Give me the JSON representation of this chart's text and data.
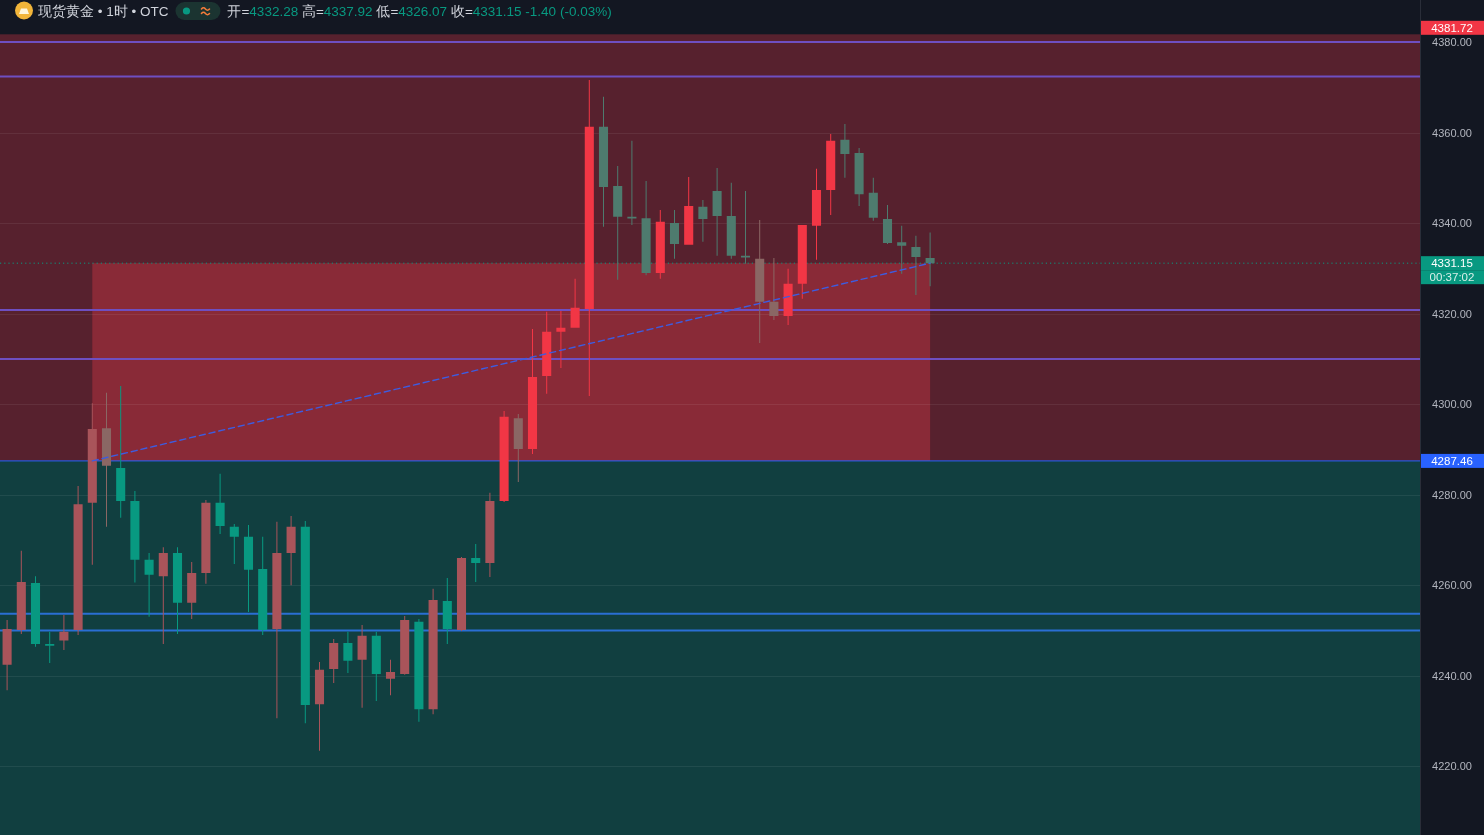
{
  "chart_data": {
    "type": "candlestick",
    "title": "现货黄金 • 1时 • OTC",
    "subtitle": "开=4332.28 高=4337.92 低=4326.07 收=4331.15 -1.40 (-0.03%)",
    "categories": [
      null,
      null,
      null,
      null,
      null,
      null,
      null,
      null,
      null,
      null,
      null,
      null,
      null,
      null,
      null,
      null,
      null,
      null,
      null,
      null,
      null,
      null,
      null,
      null,
      null,
      null,
      null,
      null,
      null,
      null,
      null,
      null,
      null,
      null,
      null,
      null,
      null,
      null,
      null,
      null,
      null,
      null,
      null,
      null,
      null,
      null,
      null,
      null,
      null,
      null,
      null,
      null,
      null,
      null,
      null,
      null,
      null,
      null,
      null,
      null,
      null,
      null,
      null,
      null,
      null,
      null,
      null,
      null,
      null,
      null,
      null,
      null,
      null,
      null,
      null,
      null,
      null,
      null,
      null,
      null,
      null,
      null,
      null,
      null,
      null,
      null,
      null,
      null,
      null,
      null,
      null,
      null,
      null,
      null,
      null,
      null,
      null,
      null,
      null,
      null
    ],
    "ohlc": [
      [
        4242.4,
        4252.3,
        4236.8,
        4250.3
      ],
      [
        4250.1,
        4267.6,
        4249.2,
        4260.7
      ],
      [
        4260.5,
        4262.0,
        4246.4,
        4247.0
      ],
      [
        4247.0,
        4249.7,
        4242.8,
        4246.6
      ],
      [
        4247.8,
        4253.4,
        4245.7,
        4249.7
      ],
      [
        4250.1,
        4281.9,
        4249.0,
        4277.9
      ],
      [
        4278.2,
        4300.2,
        4264.5,
        4294.5
      ],
      [
        4294.7,
        4302.5,
        4272.9,
        4286.4
      ],
      [
        4285.9,
        4304.0,
        4274.9,
        4278.6
      ],
      [
        4278.6,
        4280.8,
        4260.6,
        4265.6
      ],
      [
        4265.6,
        4267.1,
        4253.0,
        4262.3
      ],
      [
        4262.0,
        4268.4,
        4247.0,
        4267.1
      ],
      [
        4267.1,
        4268.4,
        4249.2,
        4256.1
      ],
      [
        4256.1,
        4265.1,
        4252.5,
        4262.7
      ],
      [
        4262.7,
        4278.8,
        4260.3,
        4278.2
      ],
      [
        4278.2,
        4284.6,
        4271.3,
        4273.1
      ],
      [
        4272.9,
        4273.5,
        4264.7,
        4270.7
      ],
      [
        4270.7,
        4273.3,
        4254.1,
        4263.4
      ],
      [
        4263.6,
        4270.7,
        4249.0,
        4250.1
      ],
      [
        4250.3,
        4274.0,
        4230.6,
        4267.1
      ],
      [
        4267.1,
        4275.3,
        4260.0,
        4272.9
      ],
      [
        4272.9,
        4274.2,
        4229.5,
        4233.5
      ],
      [
        4233.7,
        4243.0,
        4223.4,
        4241.3
      ],
      [
        4241.5,
        4248.1,
        4238.4,
        4247.2
      ],
      [
        4247.2,
        4249.7,
        4240.6,
        4243.3
      ],
      [
        4243.5,
        4251.2,
        4232.9,
        4248.8
      ],
      [
        4248.8,
        4249.7,
        4234.4,
        4240.4
      ],
      [
        4239.3,
        4243.5,
        4235.7,
        4240.8
      ],
      [
        4240.4,
        4253.2,
        4240.2,
        4252.3
      ],
      [
        4251.9,
        4252.5,
        4229.8,
        4232.6
      ],
      [
        4232.6,
        4259.2,
        4231.5,
        4256.7
      ],
      [
        4256.5,
        4261.6,
        4247.0,
        4250.3
      ],
      [
        4250.1,
        4266.2,
        4249.9,
        4266.0
      ],
      [
        4266.0,
        4269.1,
        4260.7,
        4264.9
      ],
      [
        4264.9,
        4280.4,
        4261.8,
        4278.6
      ],
      [
        4278.6,
        4298.5,
        4278.4,
        4297.2
      ],
      [
        4296.9,
        4297.8,
        4282.8,
        4290.1
      ],
      [
        4290.1,
        4316.6,
        4289.0,
        4306.0
      ],
      [
        4306.2,
        4320.4,
        4302.3,
        4316.0
      ],
      [
        4316.0,
        4320.6,
        4308.0,
        4316.9
      ],
      [
        4316.9,
        4327.7,
        4316.9,
        4321.3
      ],
      [
        4321.0,
        4371.6,
        4301.8,
        4361.3
      ],
      [
        4361.3,
        4367.9,
        4339.2,
        4348.0
      ],
      [
        4348.2,
        4352.6,
        4327.5,
        4341.4
      ],
      [
        4341.4,
        4358.2,
        4339.6,
        4341.0
      ],
      [
        4341.1,
        4349.3,
        4328.5,
        4329.0
      ],
      [
        4329.0,
        4342.9,
        4327.7,
        4340.3
      ],
      [
        4340.0,
        4342.9,
        4332.1,
        4335.4
      ],
      [
        4335.2,
        4350.2,
        4335.2,
        4343.8
      ],
      [
        4343.6,
        4345.1,
        4335.9,
        4340.9
      ],
      [
        4347.1,
        4352.2,
        4332.8,
        4341.6
      ],
      [
        4341.6,
        4348.9,
        4332.1,
        4332.8
      ],
      [
        4332.8,
        4347.1,
        4331.0,
        4332.4
      ],
      [
        4332.1,
        4340.7,
        4313.5,
        4322.6
      ],
      [
        4322.6,
        4332.3,
        4318.6,
        4319.5
      ],
      [
        4319.5,
        4329.9,
        4317.5,
        4326.6
      ],
      [
        4326.6,
        4339.6,
        4323.3,
        4339.6
      ],
      [
        4339.4,
        4352.0,
        4331.9,
        4347.3
      ],
      [
        4347.3,
        4359.7,
        4341.8,
        4358.2
      ],
      [
        4358.4,
        4361.9,
        4350.0,
        4355.3
      ],
      [
        4355.5,
        4356.6,
        4343.8,
        4346.4
      ],
      [
        4346.7,
        4350.0,
        4340.5,
        4341.2
      ],
      [
        4340.9,
        4344.0,
        4335.4,
        4335.6
      ],
      [
        4335.8,
        4339.4,
        4328.8,
        4335.0
      ],
      [
        4334.7,
        4337.2,
        4324.1,
        4332.5
      ],
      [
        4332.28,
        4337.92,
        4326.07,
        4331.15
      ],
      null,
      null,
      null,
      null,
      null,
      null,
      null,
      null,
      null,
      null,
      null,
      null,
      null,
      null,
      null,
      null,
      null,
      null,
      null,
      null,
      null,
      null,
      null,
      null,
      null,
      null,
      null,
      null,
      null,
      null,
      null,
      null,
      null,
      null
    ],
    "colors": [
      "#a9545a",
      "#a9545a",
      "#089981",
      "#089981",
      "#a9545a",
      "#a9545a",
      "#a9545a",
      "#8a6764",
      "#089981",
      "#089981",
      "#089981",
      "#a9545a",
      "#089981",
      "#a9545a",
      "#a9545a",
      "#089981",
      "#089981",
      "#089981",
      "#089981",
      "#a9545a",
      "#a9545a",
      "#089981",
      "#a9545a",
      "#a9545a",
      "#089981",
      "#a9545a",
      "#089981",
      "#a9545a",
      "#a9545a",
      "#089981",
      "#a9545a",
      "#089981",
      "#a9545a",
      "#089981",
      "#a9545a",
      "#f23645",
      "#8a6764",
      "#f23645",
      "#f23645",
      "#f23645",
      "#f23645",
      "#f23645",
      "#4e7b6e",
      "#4e7b6e",
      "#4e7b6e",
      "#4e7b6e",
      "#f23645",
      "#4e7b6e",
      "#f23645",
      "#4e7b6e",
      "#4e7b6e",
      "#4e7b6e",
      "#4e7b6e",
      "#8a6764",
      "#8a6764",
      "#f23645",
      "#f23645",
      "#f23645",
      "#f23645",
      "#4e7b6e",
      "#4e7b6e",
      "#4e7b6e",
      "#4e7b6e",
      "#4e7b6e",
      "#4e7b6e",
      "#4e7b6e",
      null,
      null,
      null,
      null,
      null,
      null,
      null,
      null,
      null,
      null,
      null,
      null,
      null,
      null,
      null,
      null,
      null,
      null,
      null,
      null,
      null,
      null,
      null,
      null,
      null,
      null,
      null,
      null,
      null,
      null,
      null,
      null,
      null,
      null
    ],
    "series": [
      {
        "type": "line",
        "color": "#3d5ce0",
        "line_style": "dashed",
        "values": [
          null,
          null,
          null,
          null,
          null,
          null,
          4287.46,
          null,
          null,
          null,
          null,
          null,
          null,
          null,
          null,
          null,
          null,
          null,
          null,
          null,
          null,
          null,
          null,
          null,
          null,
          null,
          null,
          null,
          null,
          null,
          null,
          null,
          null,
          null,
          null,
          null,
          null,
          null,
          null,
          null,
          null,
          null,
          null,
          null,
          null,
          null,
          null,
          null,
          null,
          null,
          null,
          null,
          null,
          null,
          null,
          null,
          null,
          null,
          null,
          null,
          null,
          null,
          null,
          null,
          null,
          4331.15,
          null,
          null,
          null,
          null,
          null,
          null,
          null,
          null,
          null,
          null,
          null,
          null,
          null,
          null,
          null,
          null,
          null,
          null,
          null,
          null,
          null,
          null,
          null,
          null,
          null,
          null,
          null,
          null,
          null,
          null,
          null,
          null,
          null,
          null
        ]
      }
    ],
    "ylim": [
      4204.8,
      4389.3
    ],
    "yticks": [
      {
        "value": 4220,
        "label": "4220.00"
      },
      {
        "value": 4240,
        "label": "4240.00"
      },
      {
        "value": 4260,
        "label": "4260.00"
      },
      {
        "value": 4280,
        "label": "4280.00"
      },
      {
        "value": 4300,
        "label": "4300.00"
      },
      {
        "value": 4320,
        "label": "4320.00"
      },
      {
        "value": 4340,
        "label": "4340.00"
      },
      {
        "value": 4360,
        "label": "4360.00"
      },
      {
        "value": 4380,
        "label": "4380.00"
      }
    ],
    "tick_labels": "y",
    "grid": "y",
    "bands": [
      {
        "axis": "y",
        "from": 4287.46,
        "to": 4381.72,
        "label": "4381.72",
        "color": "#57212e"
      },
      {
        "axis": "y",
        "from": 4204.8,
        "to": 4287.46,
        "color": "#113f40"
      }
    ],
    "ref_lines": [
      {
        "axis": "y",
        "value": 4380,
        "color": "#6e4fc1"
      },
      {
        "axis": "y",
        "value": 4372.4,
        "color": "#6e4fc1"
      },
      {
        "axis": "y",
        "value": 4320.8,
        "color": "#6e4fc1"
      },
      {
        "axis": "y",
        "value": 4310,
        "color": "#6e4fc1"
      },
      {
        "axis": "y",
        "value": 4253.7,
        "color": "#2a6fd3"
      },
      {
        "axis": "y",
        "value": 4250,
        "color": "#2a6fd3"
      },
      {
        "axis": "y",
        "value": 4331.15,
        "label": "4331.15",
        "color": "#089981",
        "line_style": "dotted"
      },
      {
        "axis": "y",
        "value": 4287.46,
        "label": "4287.46",
        "color": "#2962ff"
      }
    ],
    "annotations": [
      "00:37:02"
    ]
  }
}
